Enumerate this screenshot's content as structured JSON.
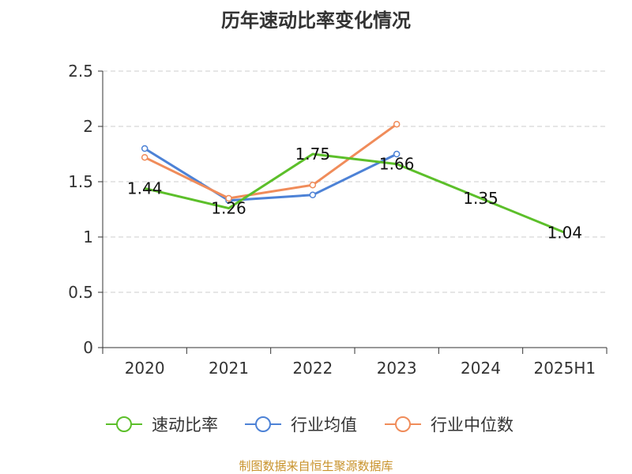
{
  "chart_data": {
    "type": "line",
    "title": "历年速动比率变化情况",
    "categories": [
      "2020",
      "2021",
      "2022",
      "2023",
      "2024",
      "2025H1"
    ],
    "yticks": [
      "0",
      "0.5",
      "1",
      "1.5",
      "2",
      "2.5"
    ],
    "ylim": [
      0,
      2.5
    ],
    "grid": true,
    "legend_position": "bottom",
    "series": [
      {
        "name": "速动比率",
        "color": "#5cbf2a",
        "values": [
          1.44,
          1.26,
          1.75,
          1.66,
          1.35,
          1.04
        ],
        "labels": [
          "1.44",
          "1.26",
          "1.75",
          "1.66",
          "1.35",
          "1.04"
        ],
        "markers": false
      },
      {
        "name": "行业均值",
        "color": "#4d82d6",
        "values": [
          1.8,
          1.33,
          1.38,
          1.75,
          null,
          null
        ],
        "markers": true
      },
      {
        "name": "行业中位数",
        "color": "#f08c5a",
        "values": [
          1.72,
          1.35,
          1.47,
          2.02,
          null,
          null
        ],
        "markers": true
      }
    ]
  },
  "source_text": "制图数据来自恒生聚源数据库"
}
